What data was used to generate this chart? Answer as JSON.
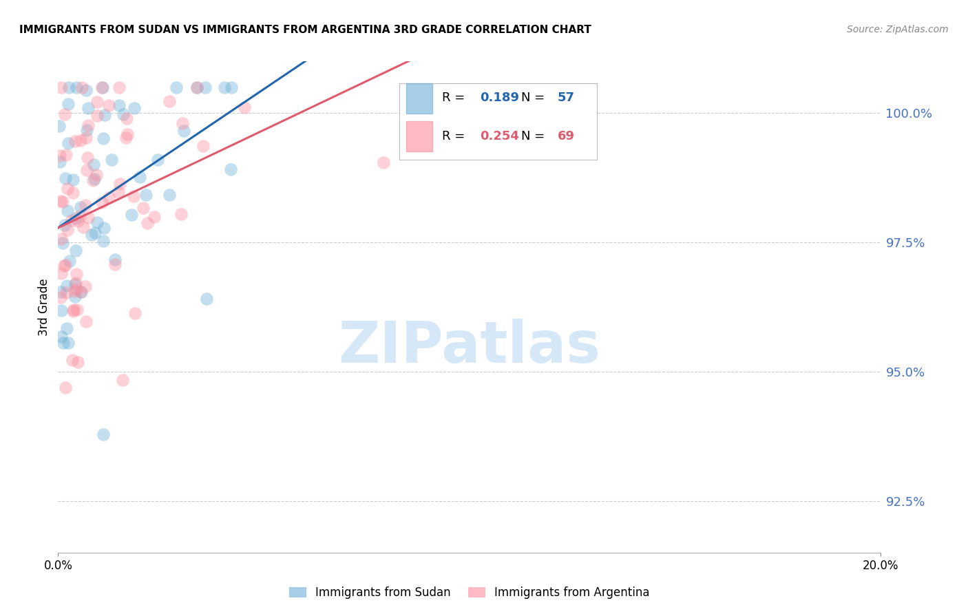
{
  "title": "IMMIGRANTS FROM SUDAN VS IMMIGRANTS FROM ARGENTINA 3RD GRADE CORRELATION CHART",
  "source": "Source: ZipAtlas.com",
  "ylabel": "3rd Grade",
  "x_min": 0.0,
  "x_max": 0.2,
  "y_min": 91.5,
  "y_max": 101.0,
  "y_ticks": [
    92.5,
    95.0,
    97.5,
    100.0
  ],
  "sudan_color": "#6baed6",
  "argentina_color": "#fc8d9c",
  "sudan_line_color": "#2166ac",
  "argentina_line_color": "#e05a6e",
  "sudan_R": 0.189,
  "sudan_N": 57,
  "argentina_R": 0.254,
  "argentina_N": 69,
  "legend_sudan": "Immigrants from Sudan",
  "legend_argentina": "Immigrants from Argentina",
  "watermark": "ZIPatlas",
  "watermark_color": "#d6e8f7"
}
